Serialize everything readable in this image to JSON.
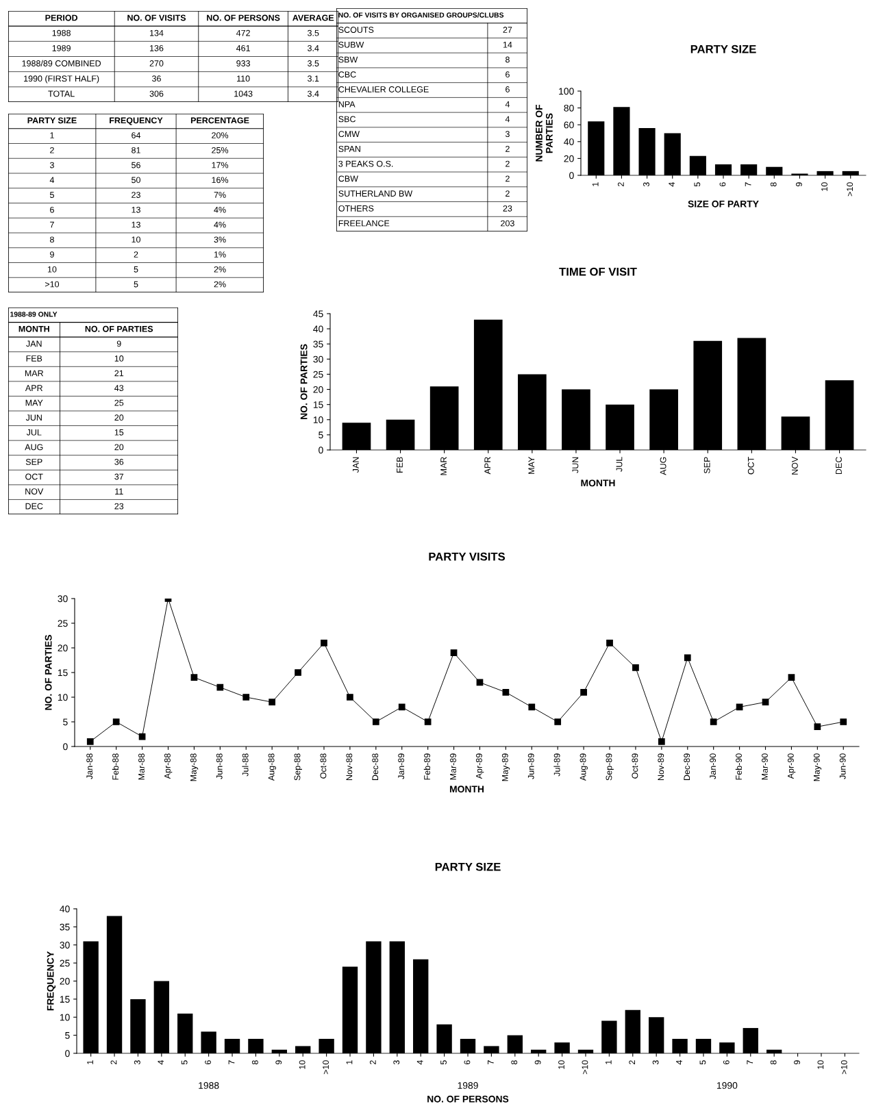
{
  "chart_data": [
    {
      "type": "other",
      "categories": [
        "PERIOD",
        "NO. OF VISITS",
        "NO. OF PERSONS",
        "AVERAGE"
      ],
      "cell_labels": [
        [
          "1988",
          "134",
          "472",
          "3.5"
        ],
        [
          "1989",
          "136",
          "461",
          "3.4"
        ],
        [
          "1988/89 COMBINED",
          "270",
          "933",
          "3.5"
        ],
        [
          "1990 (FIRST HALF)",
          "36",
          "110",
          "3.1"
        ],
        [
          "TOTAL",
          "306",
          "1043",
          "3.4"
        ]
      ]
    },
    {
      "type": "other",
      "title": "NO. OF VISITS BY ORGANISED GROUPS/CLUBS",
      "cell_labels": [
        [
          "SCOUTS",
          "27"
        ],
        [
          "SUBW",
          "14"
        ],
        [
          "SBW",
          "8"
        ],
        [
          "CBC",
          "6"
        ],
        [
          "CHEVALIER COLLEGE",
          "6"
        ],
        [
          "NPA",
          "4"
        ],
        [
          "SBC",
          "4"
        ],
        [
          "CMW",
          "3"
        ],
        [
          "SPAN",
          "2"
        ],
        [
          "3 PEAKS O.S.",
          "2"
        ],
        [
          "CBW",
          "2"
        ],
        [
          "SUTHERLAND BW",
          "2"
        ],
        [
          "OTHERS",
          "23"
        ],
        [
          "FREELANCE",
          "203"
        ]
      ]
    },
    {
      "type": "other",
      "categories": [
        "PARTY SIZE",
        "FREQUENCY",
        "PERCENTAGE"
      ],
      "cell_labels": [
        [
          "1",
          "64",
          "20%"
        ],
        [
          "2",
          "81",
          "25%"
        ],
        [
          "3",
          "56",
          "17%"
        ],
        [
          "4",
          "50",
          "16%"
        ],
        [
          "5",
          "23",
          "7%"
        ],
        [
          "6",
          "13",
          "4%"
        ],
        [
          "7",
          "13",
          "4%"
        ],
        [
          "8",
          "10",
          "3%"
        ],
        [
          "9",
          "2",
          "1%"
        ],
        [
          "10",
          "5",
          "2%"
        ],
        [
          ">10",
          "5",
          "2%"
        ]
      ]
    },
    {
      "type": "bar",
      "title": "PARTY SIZE",
      "xlabel": "SIZE OF PARTY",
      "ylabel": "NUMBER OF\nPARTIES",
      "categories": [
        "1",
        "2",
        "3",
        "4",
        "5",
        "6",
        "7",
        "8",
        "9",
        "10",
        ">10"
      ],
      "values": [
        64,
        81,
        56,
        50,
        23,
        13,
        13,
        10,
        2,
        5,
        5
      ],
      "color": "#000000",
      "ylim": [
        0,
        100
      ],
      "yticks": [
        0,
        20,
        40,
        60,
        80,
        100
      ],
      "grid": false,
      "legend": false
    },
    {
      "type": "other",
      "title": "1988-89 ONLY",
      "categories": [
        "MONTH",
        "NO. OF PARTIES"
      ],
      "cell_labels": [
        [
          "JAN",
          "9"
        ],
        [
          "FEB",
          "10"
        ],
        [
          "MAR",
          "21"
        ],
        [
          "APR",
          "43"
        ],
        [
          "MAY",
          "25"
        ],
        [
          "JUN",
          "20"
        ],
        [
          "JUL",
          "15"
        ],
        [
          "AUG",
          "20"
        ],
        [
          "SEP",
          "36"
        ],
        [
          "OCT",
          "37"
        ],
        [
          "NOV",
          "11"
        ],
        [
          "DEC",
          "23"
        ]
      ]
    },
    {
      "type": "bar",
      "title": "TIME OF VISIT",
      "xlabel": "MONTH",
      "ylabel": "NO. OF PARTIES",
      "categories": [
        "JAN",
        "FEB",
        "MAR",
        "APR",
        "MAY",
        "JUN",
        "JUL",
        "AUG",
        "SEP",
        "OCT",
        "NOV",
        "DEC"
      ],
      "values": [
        9,
        10,
        21,
        43,
        25,
        20,
        15,
        20,
        36,
        37,
        11,
        23
      ],
      "color": "#000000",
      "ylim": [
        0,
        45
      ],
      "yticks": [
        0,
        5,
        10,
        15,
        20,
        25,
        30,
        35,
        40,
        45
      ],
      "grid": false,
      "legend": false
    },
    {
      "type": "line",
      "title": "PARTY VISITS",
      "xlabel": "MONTH",
      "ylabel": "NO. OF PARTIES",
      "categories": [
        "Jan-88",
        "Feb-88",
        "Mar-88",
        "Apr-88",
        "May-88",
        "Jun-88",
        "Jul-88",
        "Aug-88",
        "Sep-88",
        "Oct-88",
        "Nov-88",
        "Dec-88",
        "Jan-89",
        "Feb-89",
        "Mar-89",
        "Apr-89",
        "May-89",
        "Jun-89",
        "Jul-89",
        "Aug-89",
        "Sep-89",
        "Oct-89",
        "Nov-89",
        "Dec-89",
        "Jan-90",
        "Feb-90",
        "Mar-90",
        "Apr-90",
        "May-90",
        "Jun-90"
      ],
      "values": [
        1,
        5,
        2,
        30,
        14,
        12,
        10,
        9,
        15,
        21,
        10,
        5,
        8,
        5,
        19,
        13,
        11,
        8,
        5,
        11,
        21,
        16,
        1,
        18,
        5,
        8,
        9,
        14,
        4,
        5
      ],
      "color": "#000000",
      "marker": "square",
      "line_style": "solid",
      "ylim": [
        0,
        30
      ],
      "yticks": [
        0,
        5,
        10,
        15,
        20,
        25,
        30
      ],
      "grid": false,
      "legend": false
    },
    {
      "type": "bar",
      "title": "PARTY SIZE",
      "xlabel": "NO. OF PERSONS",
      "ylabel": "FREQUENCY",
      "categories": [
        "1",
        "2",
        "3",
        "4",
        "5",
        "6",
        "7",
        "8",
        "9",
        "10",
        ">10",
        "1",
        "2",
        "3",
        "4",
        "5",
        "6",
        "7",
        "8",
        "9",
        "10",
        ">10",
        "1",
        "2",
        "3",
        "4",
        "5",
        "6",
        "7",
        "8",
        "9",
        "10",
        ">10"
      ],
      "values": [
        31,
        38,
        15,
        20,
        11,
        6,
        4,
        4,
        1,
        2,
        4,
        24,
        31,
        31,
        26,
        8,
        4,
        2,
        5,
        1,
        3,
        1,
        9,
        12,
        10,
        4,
        4,
        3,
        7,
        1,
        0,
        0,
        0
      ],
      "color": "#000000",
      "ylim": [
        0,
        40
      ],
      "yticks": [
        0,
        5,
        10,
        15,
        20,
        25,
        30,
        35,
        40
      ],
      "grid": false,
      "legend": false,
      "annotations": [
        "1988",
        "1989",
        "1990"
      ]
    }
  ]
}
